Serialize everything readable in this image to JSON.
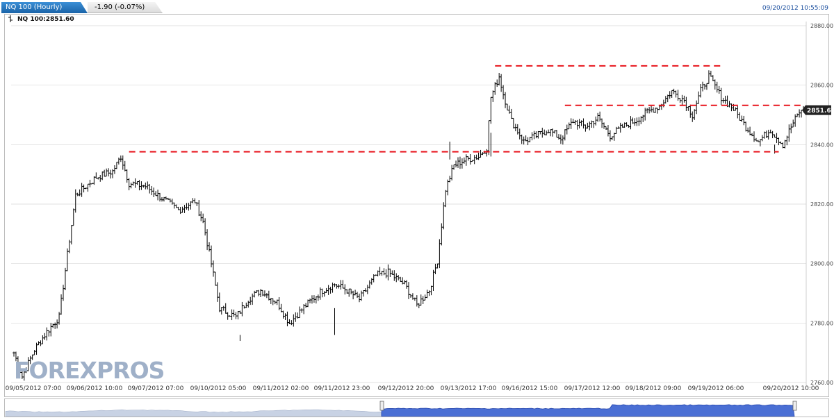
{
  "header": {
    "title_tab": "NQ 100 (Hourly)",
    "change_tab": "-1.90 (-0.07%)",
    "timestamp": "09/20/2012 10:55:09"
  },
  "symbol_label": "NQ 100:2851.60",
  "watermark": "FOREXPROS",
  "current_price_label": "2851.6",
  "colors": {
    "tab_blue": "#1a63a8",
    "candle": "#000000",
    "level_line": "#e8141c",
    "price_badge": "#222222",
    "navigator_fill": "#3b5fcf",
    "grid": "#d8d8d8"
  },
  "chart_data": {
    "type": "ohlc",
    "y_range": [
      2760,
      2880
    ],
    "y_ticks": [
      "2880.00",
      "2860.00",
      "2840.00",
      "2820.00",
      "2800.00",
      "2780.00",
      "2760.00"
    ],
    "x_ticks": [
      "09/05/2012 07:00",
      "09/06/2012 10:00",
      "09/07/2012 07:00",
      "09/10/2012 05:00",
      "09/11/2012 02:00",
      "09/11/2012 23:00",
      "09/12/2012 20:00",
      "09/13/2012 17:00",
      "09/16/2012 15:00",
      "09/17/2012 12:00",
      "09/18/2012 09:00",
      "09/19/2012 06:00",
      "09/20/2012 10:00"
    ],
    "grid": true,
    "last_price": 2851.6,
    "anchors": [
      [
        0,
        2770
      ],
      [
        4,
        2762
      ],
      [
        10,
        2771
      ],
      [
        16,
        2777
      ],
      [
        22,
        2782
      ],
      [
        26,
        2803
      ],
      [
        30,
        2823
      ],
      [
        40,
        2829
      ],
      [
        48,
        2831
      ],
      [
        52,
        2836
      ],
      [
        56,
        2827
      ],
      [
        64,
        2826
      ],
      [
        72,
        2822
      ],
      [
        80,
        2818
      ],
      [
        88,
        2821
      ],
      [
        92,
        2814
      ],
      [
        96,
        2800
      ],
      [
        100,
        2785
      ],
      [
        108,
        2782
      ],
      [
        114,
        2788
      ],
      [
        120,
        2791
      ],
      [
        128,
        2787
      ],
      [
        134,
        2780
      ],
      [
        142,
        2786
      ],
      [
        150,
        2791
      ],
      [
        156,
        2793
      ],
      [
        162,
        2791
      ],
      [
        168,
        2788
      ],
      [
        176,
        2796
      ],
      [
        182,
        2797
      ],
      [
        190,
        2793
      ],
      [
        196,
        2786
      ],
      [
        202,
        2791
      ],
      [
        206,
        2801
      ],
      [
        210,
        2825
      ],
      [
        214,
        2833
      ],
      [
        220,
        2835
      ],
      [
        226,
        2836
      ],
      [
        230,
        2839
      ],
      [
        232,
        2856
      ],
      [
        236,
        2863
      ],
      [
        238,
        2857
      ],
      [
        242,
        2848
      ],
      [
        248,
        2841
      ],
      [
        254,
        2843
      ],
      [
        260,
        2845
      ],
      [
        266,
        2842
      ],
      [
        272,
        2848
      ],
      [
        278,
        2846
      ],
      [
        284,
        2849
      ],
      [
        290,
        2843
      ],
      [
        296,
        2846
      ],
      [
        302,
        2848
      ],
      [
        308,
        2851
      ],
      [
        314,
        2853
      ],
      [
        320,
        2858
      ],
      [
        326,
        2855
      ],
      [
        330,
        2850
      ],
      [
        334,
        2858
      ],
      [
        338,
        2863
      ],
      [
        344,
        2856
      ],
      [
        350,
        2852
      ],
      [
        356,
        2846
      ],
      [
        362,
        2841
      ],
      [
        368,
        2845
      ],
      [
        374,
        2840
      ],
      [
        378,
        2846
      ],
      [
        382,
        2851
      ]
    ],
    "spikes": [
      [
        110,
        2774,
        2776
      ],
      [
        156,
        2776,
        2785
      ],
      [
        212,
        2841,
        2835
      ],
      [
        232,
        2836,
        2844
      ],
      [
        370,
        2837,
        2840
      ]
    ],
    "level_lines": [
      {
        "value": 2866.5,
        "x_from": 234,
        "x_to": 345
      },
      {
        "value": 2853.2,
        "x_from": 268,
        "x_to": 384
      },
      {
        "value": 2837.6,
        "x_from": 56,
        "x_to": 233
      },
      {
        "value": 2837.6,
        "x_from": 233,
        "x_to": 372
      }
    ]
  }
}
